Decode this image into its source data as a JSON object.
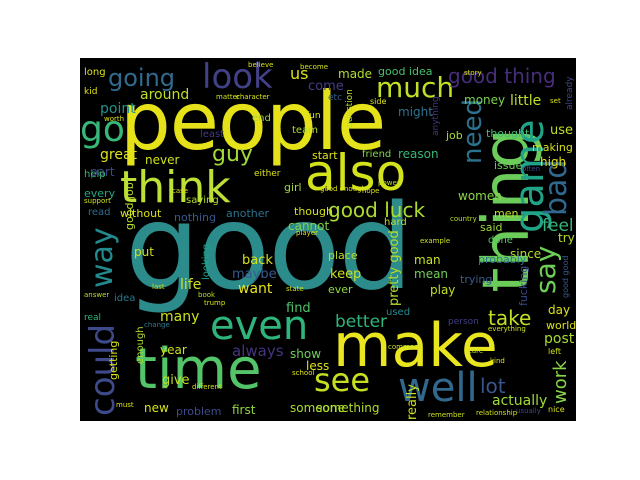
{
  "words": {
    "good": {
      "text": "good",
      "color": "#2c8b8b"
    },
    "people": {
      "text": "people",
      "color": "#e5e21a"
    },
    "thing": {
      "text": "thing",
      "color": "#6ccc5a"
    },
    "make": {
      "text": "make",
      "color": "#e9e51f"
    },
    "time": {
      "text": "time",
      "color": "#54c468"
    },
    "also": {
      "text": "also",
      "color": "#d2e21b"
    },
    "think": {
      "text": "think",
      "color": "#bde036"
    },
    "even": {
      "text": "even",
      "color": "#2fb47c"
    },
    "well": {
      "text": "well",
      "color": "#31688e"
    },
    "game": {
      "text": "game",
      "color": "#20a386"
    },
    "could": {
      "text": "could",
      "color": "#3e4a89"
    },
    "way": {
      "text": "way",
      "color": "#238a8d"
    },
    "look": {
      "text": "look",
      "color": "#424086"
    },
    "going": {
      "text": "going",
      "color": "#2f6b8e"
    },
    "go": {
      "text": "go",
      "color": "#37b878"
    },
    "see": {
      "text": "see",
      "color": "#c6e021"
    },
    "much": {
      "text": "much",
      "color": "#c1df24"
    },
    "need": {
      "text": "need",
      "color": "#2c728e"
    },
    "bad": {
      "text": "bad",
      "color": "#31688e"
    },
    "say": {
      "text": "say",
      "color": "#6ece58"
    },
    "good_thing": {
      "text": "good thing",
      "color": "#472d7b"
    },
    "good_luck": {
      "text": "good luck",
      "color": "#addc30"
    },
    "better": {
      "text": "better",
      "color": "#2fb47c"
    },
    "take": {
      "text": "take",
      "color": "#c2df23"
    },
    "guy": {
      "text": "guy",
      "color": "#a2da37"
    },
    "lot": {
      "text": "lot",
      "color": "#3a548c"
    },
    "work": {
      "text": "work",
      "color": "#86d549"
    },
    "feel": {
      "text": "feel",
      "color": "#35b779"
    },
    "us": {
      "text": "us",
      "color": "#d5e21a"
    },
    "really": {
      "text": "really",
      "color": "#cae11f"
    },
    "pretty_good": {
      "text": "pretty good",
      "color": "#b5de2b"
    },
    "always": {
      "text": "always",
      "color": "#46337f"
    },
    "post": {
      "text": "post",
      "color": "#a8db34"
    },
    "actually": {
      "text": "actually",
      "color": "#a0da39"
    },
    "made": {
      "text": "made",
      "color": "#b0dd2f"
    },
    "good_idea": {
      "text": "good idea",
      "color": "#4ac16d"
    },
    "money": {
      "text": "money",
      "color": "#7ad151"
    },
    "little": {
      "text": "little",
      "color": "#bddf26"
    },
    "come": {
      "text": "come",
      "color": "#433e85"
    },
    "point": {
      "text": "point",
      "color": "#20928c"
    },
    "around": {
      "text": "around",
      "color": "#bddf26"
    },
    "great": {
      "text": "great",
      "color": "#dde318"
    },
    "never": {
      "text": "never",
      "color": "#d0e11c"
    },
    "part": {
      "text": "part",
      "color": "#3f4788"
    },
    "every": {
      "text": "every",
      "color": "#22a884"
    },
    "good_job": {
      "text": "good job",
      "color": "#b8de29"
    },
    "back": {
      "text": "back",
      "color": "#d8e219"
    },
    "maybe": {
      "text": "maybe",
      "color": "#38598c"
    },
    "want": {
      "text": "want",
      "color": "#e7e419"
    },
    "life": {
      "text": "life",
      "color": "#d2e21b"
    },
    "find": {
      "text": "find",
      "color": "#4ec36b"
    },
    "keep": {
      "text": "keep",
      "color": "#c8e020"
    },
    "place": {
      "text": "place",
      "color": "#b5de2b"
    },
    "ever": {
      "text": "ever",
      "color": "#90d743"
    },
    "man": {
      "text": "man",
      "color": "#cae11f"
    },
    "mean": {
      "text": "mean",
      "color": "#70cf57"
    },
    "cannot": {
      "text": "cannot",
      "color": "#7fd34e"
    },
    "hard": {
      "text": "hard",
      "color": "#bddf26"
    },
    "though": {
      "text": "though",
      "color": "#d0e11c"
    },
    "girl": {
      "text": "girl",
      "color": "#a2da37"
    },
    "reason": {
      "text": "reason",
      "color": "#37b878"
    },
    "friend": {
      "text": "friend",
      "color": "#84d44b"
    },
    "start": {
      "text": "start",
      "color": "#d8e219"
    },
    "job": {
      "text": "job",
      "color": "#a5db36"
    },
    "thought": {
      "text": "thought",
      "color": "#3fbc73"
    },
    "use": {
      "text": "use",
      "color": "#c0df25"
    },
    "making": {
      "text": "making",
      "color": "#d5e21a"
    },
    "high": {
      "text": "high",
      "color": "#dde318"
    },
    "issue": {
      "text": "issue",
      "color": "#6ece58"
    },
    "women": {
      "text": "women",
      "color": "#8bd646"
    },
    "men": {
      "text": "men",
      "color": "#bfdf25"
    },
    "said": {
      "text": "said",
      "color": "#9bd93c"
    },
    "done": {
      "text": "done",
      "color": "#56c667"
    },
    "since": {
      "text": "since",
      "color": "#b2dd2d"
    },
    "try": {
      "text": "try",
      "color": "#b8de29"
    },
    "probably": {
      "text": "probably",
      "color": "#2a768e"
    },
    "trying": {
      "text": "trying",
      "color": "#38598c"
    },
    "play": {
      "text": "play",
      "color": "#c2df23"
    },
    "day": {
      "text": "day",
      "color": "#dce319"
    },
    "world": {
      "text": "world",
      "color": "#dae319"
    },
    "used": {
      "text": "used",
      "color": "#23898e"
    },
    "many": {
      "text": "many",
      "color": "#cde11d"
    },
    "year": {
      "text": "year",
      "color": "#c8e020"
    },
    "give": {
      "text": "give",
      "color": "#c2df23"
    },
    "show": {
      "text": "show",
      "color": "#6ece58"
    },
    "less": {
      "text": "less",
      "color": "#dde318"
    },
    "someone": {
      "text": "someone",
      "color": "#a8db34"
    },
    "something": {
      "text": "something",
      "color": "#b2dd2d"
    },
    "first": {
      "text": "first",
      "color": "#93d741"
    },
    "new": {
      "text": "new",
      "color": "#d8e219"
    },
    "problem": {
      "text": "problem",
      "color": "#3e4a89"
    },
    "getting": {
      "text": "getting",
      "color": "#d8e219"
    },
    "help": {
      "text": "help",
      "color": "#37b878"
    },
    "enough": {
      "text": "enough",
      "color": "#addc30"
    },
    "put": {
      "text": "put",
      "color": "#cde11d"
    },
    "looking": {
      "text": "looking",
      "color": "#20a386"
    },
    "without": {
      "text": "without",
      "color": "#dde318"
    },
    "nothing": {
      "text": "nothing",
      "color": "#38598c"
    },
    "another": {
      "text": "another",
      "color": "#2c728e"
    },
    "saying": {
      "text": "saying",
      "color": "#b5de2b"
    },
    "idea": {
      "text": "idea",
      "color": "#2a788e"
    },
    "read": {
      "text": "read",
      "color": "#2f6c8e"
    },
    "kid": {
      "text": "kid",
      "color": "#e2e418"
    },
    "long": {
      "text": "long",
      "color": "#d8e219"
    },
    "etc": {
      "text": "etc",
      "color": "#34618d"
    },
    "might": {
      "text": "might",
      "color": "#2c738e"
    },
    "least": {
      "text": "least",
      "color": "#443983"
    },
    "end": {
      "text": "end",
      "color": "#9dd93b"
    },
    "fun": {
      "text": "fun",
      "color": "#dae319"
    },
    "team": {
      "text": "team",
      "color": "#b2dd2d"
    },
    "either": {
      "text": "either",
      "color": "#dde318"
    },
    "question": {
      "text": "question",
      "color": "#bddf26"
    },
    "anything": {
      "text": "anything",
      "color": "#453781"
    },
    "side": {
      "text": "side",
      "color": "#dde318"
    },
    "already": {
      "text": "already",
      "color": "#3f4788"
    },
    "story": {
      "text": "story",
      "color": "#dde318"
    },
    "matter": {
      "text": "matter",
      "color": "#d2e21b"
    },
    "character": {
      "text": "character",
      "color": "#d8e219"
    },
    "country": {
      "text": "country",
      "color": "#b2dd2d"
    },
    "player": {
      "text": "player",
      "color": "#dce319"
    },
    "fucking": {
      "text": "fucking",
      "color": "#3e4a89"
    },
    "last": {
      "text": "last",
      "color": "#c8e020"
    },
    "book": {
      "text": "book",
      "color": "#b2dd2d"
    },
    "trump": {
      "text": "trump",
      "color": "#d8e219"
    },
    "answer": {
      "text": "answer",
      "color": "#c2df23"
    },
    "real": {
      "text": "real",
      "color": "#35b779"
    },
    "change": {
      "text": "change",
      "color": "#2a788e"
    },
    "state": {
      "text": "state",
      "color": "#cde11d"
    },
    "school": {
      "text": "school",
      "color": "#dde318"
    },
    "person": {
      "text": "person",
      "color": "#433e85"
    },
    "kind": {
      "text": "kind",
      "color": "#dde318"
    },
    "remember": {
      "text": "remember",
      "color": "#cde11d"
    },
    "relationship": {
      "text": "relationship",
      "color": "#d2e21b"
    },
    "usually": {
      "text": "usually",
      "color": "#3e4a89"
    },
    "nice": {
      "text": "nice",
      "color": "#d8e219"
    },
    "care": {
      "text": "care",
      "color": "#c2df23"
    },
    "left": {
      "text": "left",
      "color": "#d2e21b"
    },
    "everything": {
      "text": "everything",
      "color": "#cde11d"
    },
    "good_enough": {
      "text": "good enough",
      "color": "#dde318"
    },
    "good_good": {
      "text": "good good",
      "color": "#38598c"
    },
    "case": {
      "text": "case",
      "color": "#d8e219"
    },
    "support": {
      "text": "support",
      "color": "#cde11d"
    },
    "hope": {
      "text": "hope",
      "color": "#dae319"
    },
    "power": {
      "text": "power",
      "color": "#b2dd2d"
    },
    "worth": {
      "text": "worth",
      "color": "#dde318"
    },
    "set": {
      "text": "set",
      "color": "#dce319"
    },
    "different": {
      "text": "different",
      "color": "#d2e21b"
    },
    "must": {
      "text": "must",
      "color": "#dde318"
    },
    "comment": {
      "text": "comment",
      "color": "#c8e020"
    },
    "often": {
      "text": "often",
      "color": "#3f4788"
    },
    "example": {
      "text": "example",
      "color": "#cde11d"
    },
    "become": {
      "text": "become",
      "color": "#d2e21b"
    },
    "believe": {
      "text": "believe",
      "color": "#dde318"
    }
  }
}
